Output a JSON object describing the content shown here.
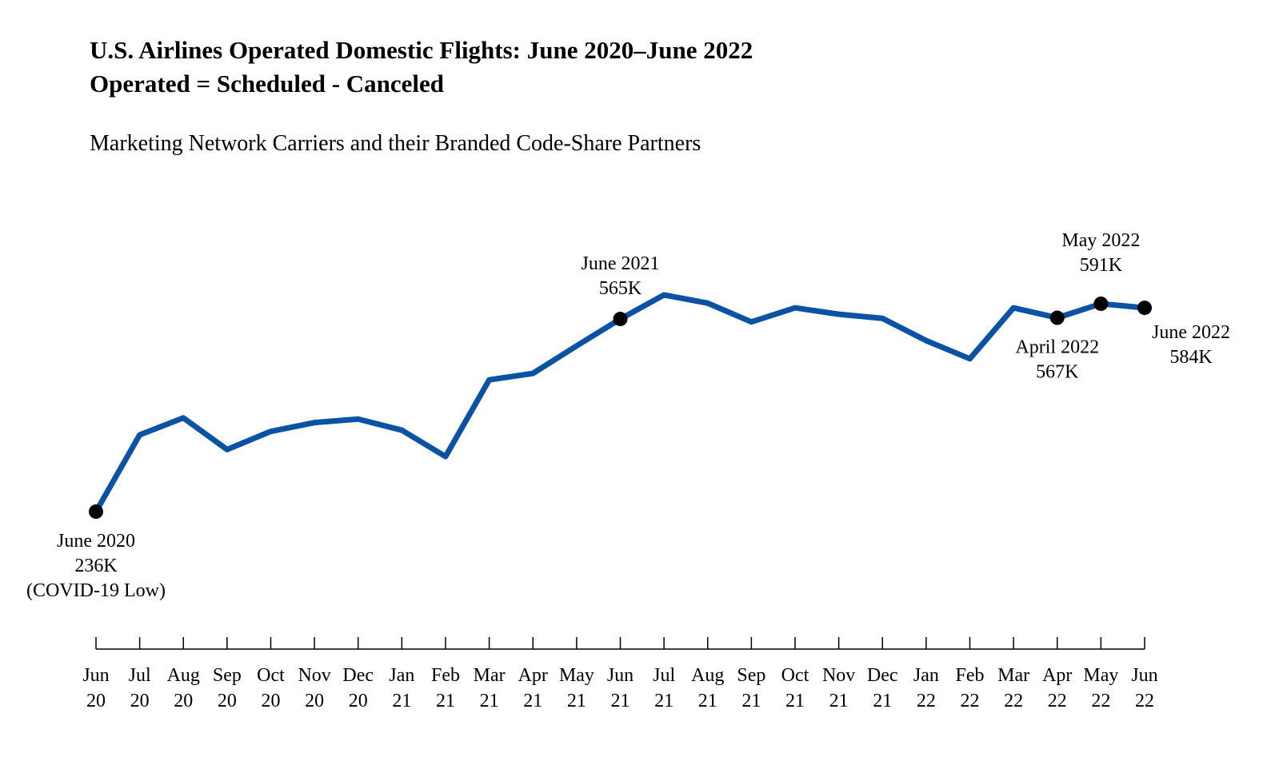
{
  "chart_data": {
    "type": "line",
    "title": "U.S. Airlines Operated Domestic Flights: June 2020–June 2022",
    "title_line2": "Operated = Scheduled - Canceled",
    "subtitle": "Marketing Network Carriers and their Branded Code-Share Partners",
    "xlabel": "",
    "ylabel": "",
    "units": "thousands of flights",
    "grid": false,
    "categories": [
      [
        "Jun",
        "20"
      ],
      [
        "Jul",
        "20"
      ],
      [
        "Aug",
        "20"
      ],
      [
        "Sep",
        "20"
      ],
      [
        "Oct",
        "20"
      ],
      [
        "Nov",
        "20"
      ],
      [
        "Dec",
        "20"
      ],
      [
        "Jan",
        "21"
      ],
      [
        "Feb",
        "21"
      ],
      [
        "Mar",
        "21"
      ],
      [
        "Apr",
        "21"
      ],
      [
        "May",
        "21"
      ],
      [
        "Jun",
        "21"
      ],
      [
        "Jul",
        "21"
      ],
      [
        "Aug",
        "21"
      ],
      [
        "Sep",
        "21"
      ],
      [
        "Oct",
        "21"
      ],
      [
        "Nov",
        "21"
      ],
      [
        "Dec",
        "21"
      ],
      [
        "Jan",
        "22"
      ],
      [
        "Feb",
        "22"
      ],
      [
        "Mar",
        "22"
      ],
      [
        "Apr",
        "22"
      ],
      [
        "May",
        "22"
      ],
      [
        "Jun",
        "22"
      ]
    ],
    "series": [
      {
        "name": "Operated flights",
        "color": "#0B52A5",
        "values": [
          236,
          367,
          396,
          342,
          373,
          388,
          394,
          375,
          330,
          461,
          472,
          519,
          565,
          606,
          592,
          560,
          584,
          573,
          566,
          528,
          497,
          584,
          567,
          591,
          584
        ]
      }
    ],
    "annotations": [
      {
        "index": 0,
        "lines": [
          "June 2020",
          "236K",
          "(COVID-19 Low)"
        ]
      },
      {
        "index": 12,
        "lines": [
          "June 2021",
          "565K"
        ]
      },
      {
        "index": 22,
        "lines": [
          "April 2022",
          "567K"
        ]
      },
      {
        "index": 23,
        "lines": [
          "May 2022",
          "591K"
        ]
      },
      {
        "index": 24,
        "lines": [
          "June 2022",
          "584K"
        ]
      }
    ]
  }
}
